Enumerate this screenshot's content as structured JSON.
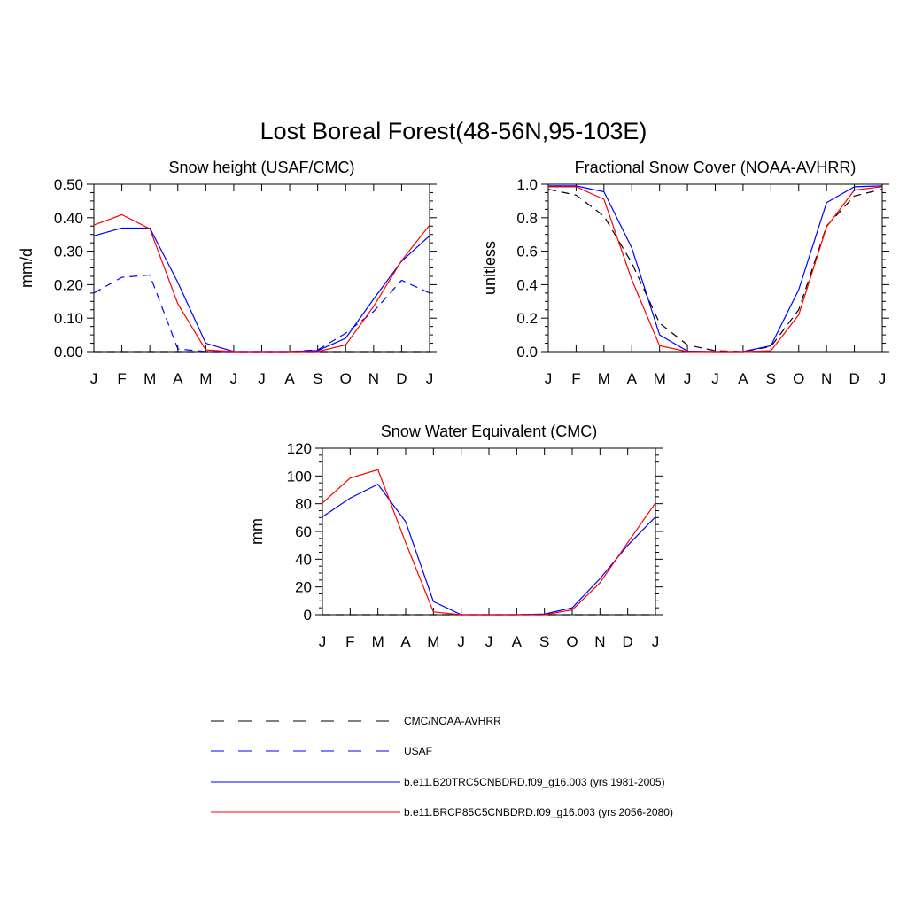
{
  "figure_title": "Lost Boreal Forest(48-56N,95-103E)",
  "legend": [
    {
      "label": "CMC/NOAA-AVHRR",
      "color": "#000000",
      "dash": "dashed"
    },
    {
      "label": "USAF",
      "color": "#0000ff",
      "dash": "dashed"
    },
    {
      "label": "b.e11.B20TRC5CNBDRD.f09_g16.003 (yrs 1981-2005)",
      "color": "#0000ff",
      "dash": "solid"
    },
    {
      "label": "b.e11.BRCP85C5CNBDRD.f09_g16.003 (yrs 2056-2080)",
      "color": "#ff0000",
      "dash": "solid"
    }
  ],
  "chart_data": [
    {
      "type": "line",
      "title": "Snow height (USAF/CMC)",
      "ylabel": "mm/d",
      "ylim": [
        0,
        0.5
      ],
      "yticks": [
        "0.00",
        "0.10",
        "0.20",
        "0.30",
        "0.40",
        "0.50"
      ],
      "categories": [
        "J",
        "F",
        "M",
        "A",
        "M",
        "J",
        "J",
        "A",
        "S",
        "O",
        "N",
        "D",
        "J"
      ],
      "series": [
        {
          "name": "CMC/NOAA-AVHRR",
          "color": "#000000",
          "dash": "dashed",
          "values": [
            0,
            0,
            0,
            0,
            0,
            0,
            0,
            0,
            0,
            0,
            0,
            0,
            0
          ]
        },
        {
          "name": "USAF",
          "color": "#0000ff",
          "dash": "dashed",
          "values": [
            0.175,
            0.222,
            0.229,
            0.008,
            0,
            0,
            0,
            0,
            0.005,
            0.055,
            0.12,
            0.213,
            0.175
          ]
        },
        {
          "name": "b.e11.B20TRC5CNBDRD.f09_g16.003 (yrs 1981-2005)",
          "color": "#0000ff",
          "dash": "solid",
          "values": [
            0.346,
            0.369,
            0.369,
            0.207,
            0.025,
            0,
            0,
            0,
            0.003,
            0.04,
            0.157,
            0.27,
            0.346
          ]
        },
        {
          "name": "b.e11.BRCP85C5CNBDRD.f09_g16.003 (yrs 2056-2080)",
          "color": "#ff0000",
          "dash": "solid",
          "values": [
            0.378,
            0.409,
            0.367,
            0.143,
            0.005,
            0,
            0,
            0,
            0,
            0.02,
            0.135,
            0.272,
            0.378
          ]
        }
      ]
    },
    {
      "type": "line",
      "title": "Fractional Snow Cover (NOAA-AVHRR)",
      "ylabel": "unitless",
      "ylim": [
        0,
        1.0
      ],
      "yticks": [
        "0.0",
        "0.2",
        "0.4",
        "0.6",
        "0.8",
        "1.0"
      ],
      "categories": [
        "J",
        "F",
        "M",
        "A",
        "M",
        "J",
        "J",
        "A",
        "S",
        "O",
        "N",
        "D",
        "J"
      ],
      "series": [
        {
          "name": "CMC/NOAA-AVHRR",
          "color": "#000000",
          "dash": "dashed",
          "values": [
            0.97,
            0.935,
            0.81,
            0.53,
            0.17,
            0.04,
            0.005,
            0,
            0.03,
            0.25,
            0.75,
            0.93,
            0.97
          ]
        },
        {
          "name": "b.e11.B20TRC5CNBDRD.f09_g16.003 (yrs 1981-2005)",
          "color": "#0000ff",
          "dash": "solid",
          "values": [
            0.99,
            0.99,
            0.955,
            0.62,
            0.1,
            0.003,
            0,
            0,
            0.035,
            0.37,
            0.89,
            0.985,
            0.99
          ]
        },
        {
          "name": "b.e11.BRCP85C5CNBDRD.f09_g16.003 (yrs 2056-2080)",
          "color": "#ff0000",
          "dash": "solid",
          "values": [
            0.985,
            0.985,
            0.91,
            0.43,
            0.035,
            0,
            0,
            0,
            0.005,
            0.22,
            0.745,
            0.965,
            0.985
          ]
        }
      ]
    },
    {
      "type": "line",
      "title": "Snow Water Equivalent (CMC)",
      "ylabel": "mm",
      "ylim": [
        0,
        120
      ],
      "yticks": [
        "0",
        "20",
        "40",
        "60",
        "80",
        "100",
        "120"
      ],
      "categories": [
        "J",
        "F",
        "M",
        "A",
        "M",
        "J",
        "J",
        "A",
        "S",
        "O",
        "N",
        "D",
        "J"
      ],
      "series": [
        {
          "name": "CMC/NOAA-AVHRR",
          "color": "#000000",
          "dash": "dashed",
          "values": [
            0,
            0,
            0,
            0,
            0,
            0,
            0,
            0,
            0,
            0,
            0,
            0,
            0
          ]
        },
        {
          "name": "b.e11.B20TRC5CNBDRD.f09_g16.003 (yrs 1981-2005)",
          "color": "#0000ff",
          "dash": "solid",
          "values": [
            70.5,
            84,
            94,
            67,
            9.5,
            0,
            0,
            0,
            0.5,
            5,
            26,
            50,
            70.5
          ]
        },
        {
          "name": "b.e11.BRCP85C5CNBDRD.f09_g16.003 (yrs 2056-2080)",
          "color": "#ff0000",
          "dash": "solid",
          "values": [
            80.5,
            98.5,
            104.5,
            52,
            2,
            0,
            0,
            0,
            0,
            3.5,
            23,
            52,
            80.5
          ]
        }
      ]
    }
  ]
}
